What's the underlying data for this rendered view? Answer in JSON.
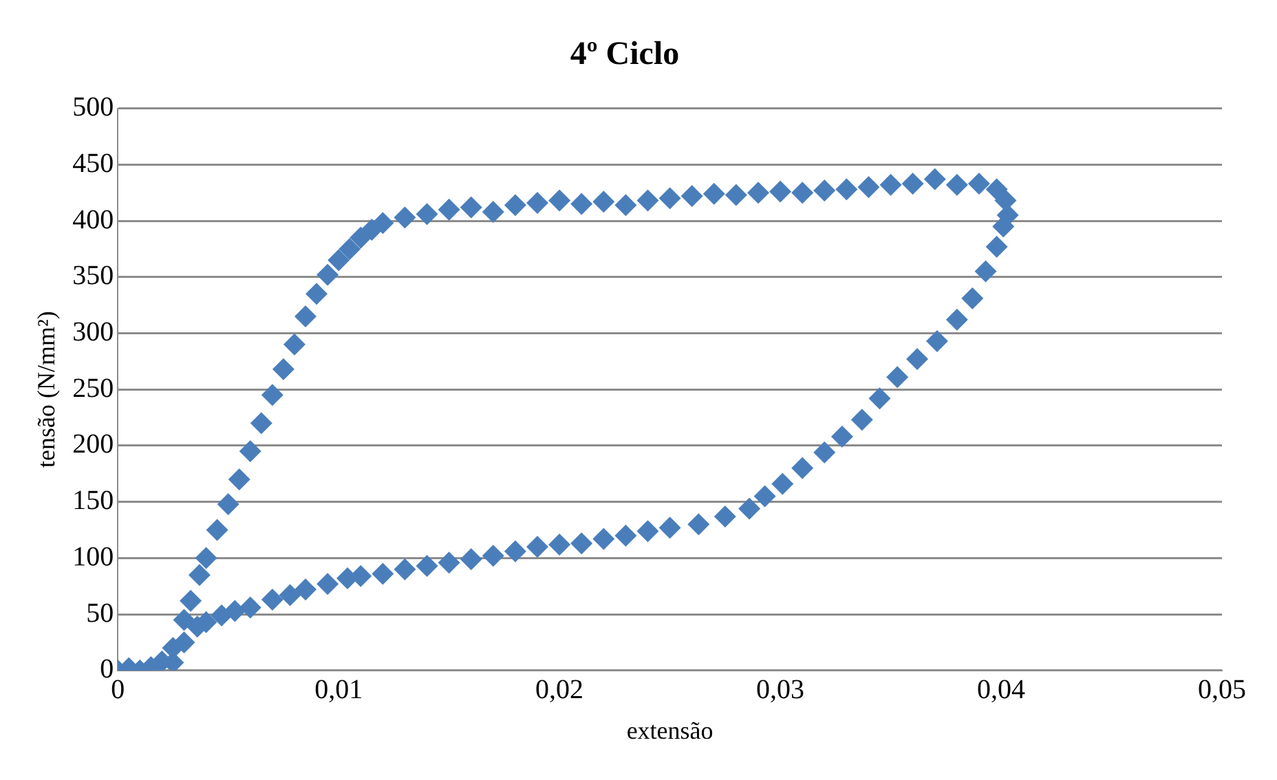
{
  "chart_data": {
    "type": "scatter",
    "title": "4º Ciclo",
    "xlabel": "extensão",
    "ylabel": "tensão (N/mm²)",
    "xlim": [
      0,
      0.05
    ],
    "xticks": [
      {
        "value": 0,
        "label": "0"
      },
      {
        "value": 0.01,
        "label": "0,01"
      },
      {
        "value": 0.02,
        "label": "0,02"
      },
      {
        "value": 0.03,
        "label": "0,03"
      },
      {
        "value": 0.04,
        "label": "0,04"
      },
      {
        "value": 0.05,
        "label": "0,05"
      }
    ],
    "ylim": [
      0,
      500
    ],
    "yticks": [
      0,
      50,
      100,
      150,
      200,
      250,
      300,
      350,
      400,
      450,
      500
    ],
    "grid": "y",
    "legend": false,
    "marker": "diamond",
    "series": [
      {
        "color": "#4a7ebb",
        "x": [
          0,
          0.0005,
          0.001,
          0.0015,
          0.002,
          0.0025,
          0.003,
          0.0033,
          0.0037,
          0.004,
          0.0045,
          0.005,
          0.0055,
          0.006,
          0.0065,
          0.007,
          0.0075,
          0.008,
          0.0085,
          0.009,
          0.0095,
          0.01,
          0.0105,
          0.011,
          0.0115,
          0.012,
          0.013,
          0.014,
          0.015,
          0.016,
          0.017,
          0.018,
          0.019,
          0.02,
          0.021,
          0.022,
          0.023,
          0.024,
          0.025,
          0.026,
          0.027,
          0.028,
          0.029,
          0.03,
          0.031,
          0.032,
          0.033,
          0.034,
          0.035,
          0.036,
          0.037,
          0.038,
          0.039,
          0.0398,
          0.0402,
          0.0403,
          0.0401,
          0.0398,
          0.0393,
          0.0387,
          0.038,
          0.0371,
          0.0362,
          0.0353,
          0.0345,
          0.0337,
          0.0328,
          0.032,
          0.031,
          0.0301,
          0.0293,
          0.0286,
          0.0275,
          0.0263,
          0.025,
          0.024,
          0.023,
          0.022,
          0.021,
          0.02,
          0.019,
          0.018,
          0.017,
          0.016,
          0.015,
          0.014,
          0.013,
          0.012,
          0.011,
          0.0104,
          0.0095,
          0.0085,
          0.0078,
          0.007,
          0.006,
          0.0053,
          0.0047,
          0.004,
          0.0036,
          0.003,
          0.0025
        ],
        "values": [
          0,
          2,
          0,
          3,
          8,
          20,
          45,
          62,
          85,
          100,
          125,
          148,
          170,
          195,
          220,
          245,
          268,
          290,
          315,
          335,
          352,
          365,
          375,
          385,
          392,
          398,
          403,
          406,
          410,
          412,
          408,
          414,
          416,
          418,
          415,
          417,
          414,
          418,
          420,
          422,
          424,
          423,
          425,
          426,
          425,
          427,
          428,
          430,
          432,
          433,
          437,
          432,
          433,
          428,
          418,
          405,
          395,
          377,
          355,
          331,
          312,
          293,
          277,
          261,
          242,
          223,
          208,
          194,
          180,
          166,
          155,
          144,
          137,
          130,
          127,
          124,
          120,
          117,
          113,
          112,
          110,
          106,
          102,
          99,
          96,
          93,
          90,
          86,
          84,
          82,
          77,
          72,
          67,
          63,
          56,
          53,
          49,
          43,
          39,
          25,
          7
        ]
      }
    ]
  }
}
